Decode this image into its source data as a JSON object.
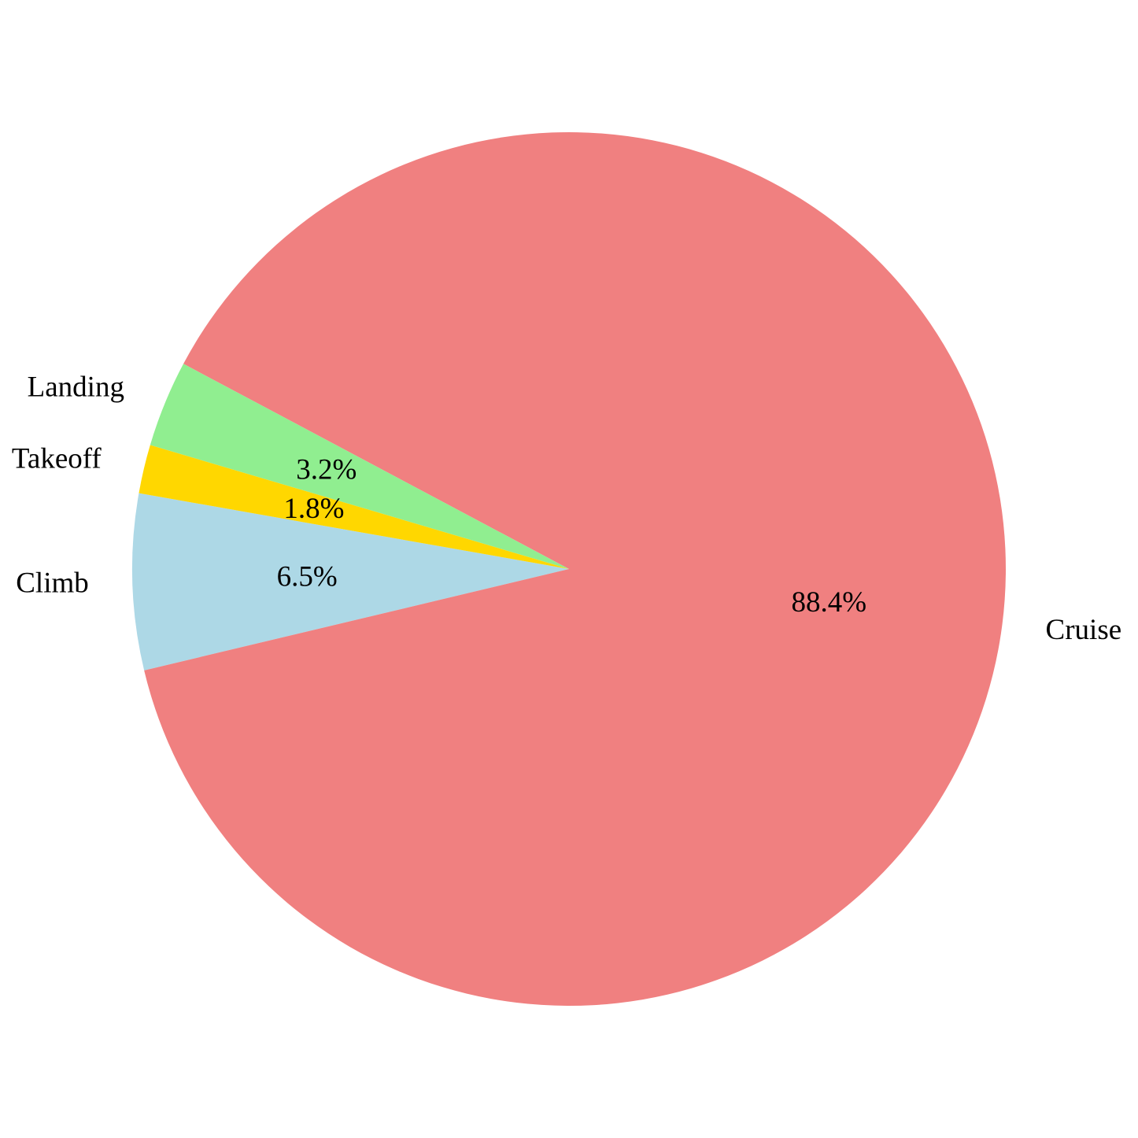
{
  "chart_data": {
    "type": "pie",
    "categories": [
      "Climb",
      "Cruise",
      "Landing",
      "Takeoff"
    ],
    "values": [
      6.5,
      88.4,
      3.2,
      1.8
    ],
    "value_labels": [
      "6.5%",
      "88.4%",
      "3.2%",
      "1.8%"
    ],
    "colors": [
      "#add8e6",
      "#f08080",
      "#90ee90",
      "#ffd700"
    ],
    "start_angle_deg": 170,
    "direction": "counterclockwise",
    "title": "",
    "legend": "none"
  }
}
